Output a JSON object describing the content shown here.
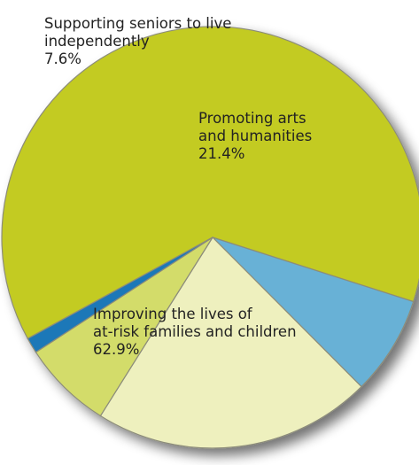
{
  "chart_data": {
    "type": "pie",
    "slices": [
      {
        "name": "Improving the lives of at-risk families and children",
        "label_lines": [
          "Improving the lives of",
          "at-risk families and children"
        ],
        "value": 62.9,
        "value_label": "62.9%",
        "color": "#c3cb24"
      },
      {
        "name": "Supporting seniors to live independently",
        "label_lines": [
          "Supporting seniors to live",
          "independently"
        ],
        "value": 7.6,
        "value_label": "7.6%",
        "color": "#67b1d6"
      },
      {
        "name": "Promoting arts and humanities",
        "label_lines": [
          "Promoting arts",
          "and humanities"
        ],
        "value": 21.4,
        "value_label": "21.4%",
        "color": "#eef0be"
      },
      {
        "name": "",
        "label_lines": [],
        "value": 6.9,
        "value_label": "",
        "color": "#d3dc6a"
      },
      {
        "name": "",
        "label_lines": [],
        "value": 1.2,
        "value_label": "",
        "color": "#1f78b8"
      }
    ]
  }
}
